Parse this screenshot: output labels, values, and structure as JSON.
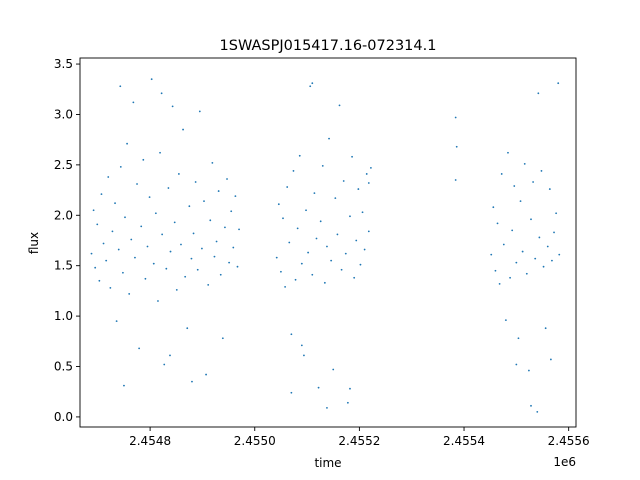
{
  "chart_data": {
    "type": "scatter",
    "title": "1SWASPJ015417.16-072314.1",
    "xlabel": "time",
    "ylabel": "flux",
    "x_offset_label": "1e6",
    "xlim": [
      2454666.0,
      2455614.0
    ],
    "ylim": [
      -0.1,
      3.56
    ],
    "x_ticks": [
      {
        "value": 2454800,
        "label": "2.4548"
      },
      {
        "value": 2455000,
        "label": "2.4550"
      },
      {
        "value": 2455200,
        "label": "2.4552"
      },
      {
        "value": 2455400,
        "label": "2.4554"
      },
      {
        "value": 2455600,
        "label": "2.4556"
      }
    ],
    "y_ticks": [
      {
        "value": 0.0,
        "label": "0.0"
      },
      {
        "value": 0.5,
        "label": "0.5"
      },
      {
        "value": 1.0,
        "label": "1.0"
      },
      {
        "value": 1.5,
        "label": "1.5"
      },
      {
        "value": 2.0,
        "label": "2.0"
      },
      {
        "value": 2.5,
        "label": "2.5"
      },
      {
        "value": 3.0,
        "label": "3.0"
      },
      {
        "value": 3.5,
        "label": "3.5"
      }
    ],
    "grid": false,
    "marker_color": "#1f77b4",
    "series": [
      {
        "points": [
          [
            2454688,
            1.62
          ],
          [
            2454692,
            2.05
          ],
          [
            2454695,
            1.48
          ],
          [
            2454699,
            1.91
          ],
          [
            2454703,
            1.35
          ],
          [
            2454707,
            2.21
          ],
          [
            2454711,
            1.72
          ],
          [
            2454716,
            1.55
          ],
          [
            2454720,
            2.38
          ],
          [
            2454724,
            1.28
          ],
          [
            2454728,
            1.84
          ],
          [
            2454733,
            2.12
          ],
          [
            2454736,
            0.95
          ],
          [
            2454740,
            1.66
          ],
          [
            2454744,
            2.48
          ],
          [
            2454748,
            1.43
          ],
          [
            2454752,
            1.98
          ],
          [
            2454756,
            2.71
          ],
          [
            2454760,
            1.22
          ],
          [
            2454764,
            1.76
          ],
          [
            2454768,
            3.12
          ],
          [
            2454771,
            1.58
          ],
          [
            2454775,
            2.31
          ],
          [
            2454779,
            0.68
          ],
          [
            2454783,
            1.89
          ],
          [
            2454787,
            2.55
          ],
          [
            2454791,
            1.37
          ],
          [
            2454795,
            1.69
          ],
          [
            2454799,
            2.18
          ],
          [
            2454803,
            3.35
          ],
          [
            2454807,
            1.52
          ],
          [
            2454811,
            2.02
          ],
          [
            2454815,
            1.15
          ],
          [
            2454819,
            2.62
          ],
          [
            2454823,
            1.81
          ],
          [
            2454827,
            0.52
          ],
          [
            2454831,
            1.47
          ],
          [
            2454835,
            2.27
          ],
          [
            2454839,
            1.64
          ],
          [
            2454843,
            3.08
          ],
          [
            2454847,
            1.93
          ],
          [
            2454851,
            1.26
          ],
          [
            2454855,
            2.41
          ],
          [
            2454859,
            1.71
          ],
          [
            2454863,
            2.85
          ],
          [
            2454867,
            1.39
          ],
          [
            2454871,
            0.88
          ],
          [
            2454875,
            2.09
          ],
          [
            2454879,
            1.57
          ],
          [
            2454883,
            1.82
          ],
          [
            2454887,
            2.33
          ],
          [
            2454891,
            1.46
          ],
          [
            2454895,
            3.03
          ],
          [
            2454899,
            1.67
          ],
          [
            2454903,
            2.14
          ],
          [
            2454907,
            0.42
          ],
          [
            2454911,
            1.31
          ],
          [
            2454915,
            1.95
          ],
          [
            2454919,
            2.52
          ],
          [
            2454923,
            1.59
          ],
          [
            2454927,
            1.74
          ],
          [
            2454931,
            2.24
          ],
          [
            2454935,
            1.41
          ],
          [
            2454939,
            0.78
          ],
          [
            2454943,
            1.88
          ],
          [
            2454947,
            2.36
          ],
          [
            2454951,
            1.53
          ],
          [
            2454955,
            2.04
          ],
          [
            2454959,
            1.68
          ],
          [
            2454963,
            2.19
          ],
          [
            2454967,
            1.49
          ],
          [
            2454970,
            1.86
          ],
          [
            2454743,
            3.28
          ],
          [
            2454750,
            0.31
          ],
          [
            2454822,
            3.21
          ],
          [
            2454880,
            0.35
          ],
          [
            2454838,
            0.61
          ],
          [
            2455042,
            1.58
          ],
          [
            2455046,
            2.11
          ],
          [
            2455050,
            1.44
          ],
          [
            2455054,
            1.97
          ],
          [
            2455058,
            1.29
          ],
          [
            2455062,
            2.28
          ],
          [
            2455066,
            1.73
          ],
          [
            2455070,
            0.82
          ],
          [
            2455074,
            2.44
          ],
          [
            2455078,
            1.36
          ],
          [
            2455082,
            1.87
          ],
          [
            2455086,
            2.59
          ],
          [
            2455090,
            1.52
          ],
          [
            2455094,
            0.61
          ],
          [
            2455098,
            2.05
          ],
          [
            2455102,
            1.63
          ],
          [
            2455106,
            3.28
          ],
          [
            2455110,
            1.41
          ],
          [
            2455114,
            2.22
          ],
          [
            2455118,
            1.77
          ],
          [
            2455122,
            0.29
          ],
          [
            2455126,
            1.94
          ],
          [
            2455130,
            2.49
          ],
          [
            2455134,
            1.33
          ],
          [
            2455138,
            1.69
          ],
          [
            2455142,
            2.76
          ],
          [
            2455146,
            1.55
          ],
          [
            2455150,
            0.47
          ],
          [
            2455154,
            2.17
          ],
          [
            2455158,
            1.81
          ],
          [
            2455162,
            3.09
          ],
          [
            2455166,
            1.46
          ],
          [
            2455170,
            2.34
          ],
          [
            2455174,
            1.62
          ],
          [
            2455178,
            0.14
          ],
          [
            2455182,
            1.99
          ],
          [
            2455186,
            2.58
          ],
          [
            2455190,
            1.38
          ],
          [
            2455194,
            1.75
          ],
          [
            2455198,
            2.26
          ],
          [
            2455202,
            1.51
          ],
          [
            2455206,
            2.03
          ],
          [
            2455210,
            1.66
          ],
          [
            2455214,
            2.41
          ],
          [
            2455218,
            1.84
          ],
          [
            2455222,
            2.47
          ],
          [
            2455218,
            2.32
          ],
          [
            2455070,
            0.24
          ],
          [
            2455138,
            0.09
          ],
          [
            2455182,
            0.28
          ],
          [
            2455110,
            3.31
          ],
          [
            2455090,
            0.71
          ],
          [
            2455384,
            2.97
          ],
          [
            2455386,
            2.68
          ],
          [
            2455384,
            2.35
          ],
          [
            2455452,
            1.61
          ],
          [
            2455456,
            2.08
          ],
          [
            2455460,
            1.45
          ],
          [
            2455464,
            1.92
          ],
          [
            2455468,
            1.32
          ],
          [
            2455472,
            2.41
          ],
          [
            2455476,
            1.71
          ],
          [
            2455480,
            0.96
          ],
          [
            2455484,
            2.62
          ],
          [
            2455488,
            1.38
          ],
          [
            2455492,
            1.85
          ],
          [
            2455496,
            2.29
          ],
          [
            2455500,
            1.53
          ],
          [
            2455504,
            0.78
          ],
          [
            2455508,
            2.14
          ],
          [
            2455512,
            1.64
          ],
          [
            2455516,
            2.51
          ],
          [
            2455520,
            1.42
          ],
          [
            2455524,
            0.46
          ],
          [
            2455528,
            1.96
          ],
          [
            2455532,
            2.33
          ],
          [
            2455536,
            1.57
          ],
          [
            2455540,
            0.05
          ],
          [
            2455544,
            1.78
          ],
          [
            2455548,
            2.44
          ],
          [
            2455552,
            1.49
          ],
          [
            2455556,
            0.88
          ],
          [
            2455560,
            1.69
          ],
          [
            2455564,
            2.26
          ],
          [
            2455568,
            1.55
          ],
          [
            2455572,
            1.83
          ],
          [
            2455576,
            2.02
          ],
          [
            2455580,
            3.31
          ],
          [
            2455582,
            1.61
          ],
          [
            2455542,
            3.21
          ],
          [
            2455528,
            0.11
          ],
          [
            2455500,
            0.52
          ],
          [
            2455566,
            0.57
          ]
        ]
      }
    ]
  }
}
